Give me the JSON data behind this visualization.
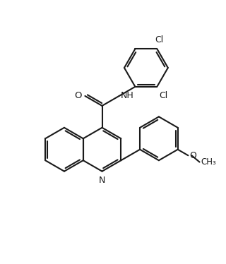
{
  "bg_color": "#ffffff",
  "line_color": "#1a1a1a",
  "line_width": 1.5,
  "figsize": [
    3.2,
    3.74
  ],
  "dpi": 100,
  "xlim": [
    -1,
    9
  ],
  "ylim": [
    -1,
    11
  ]
}
